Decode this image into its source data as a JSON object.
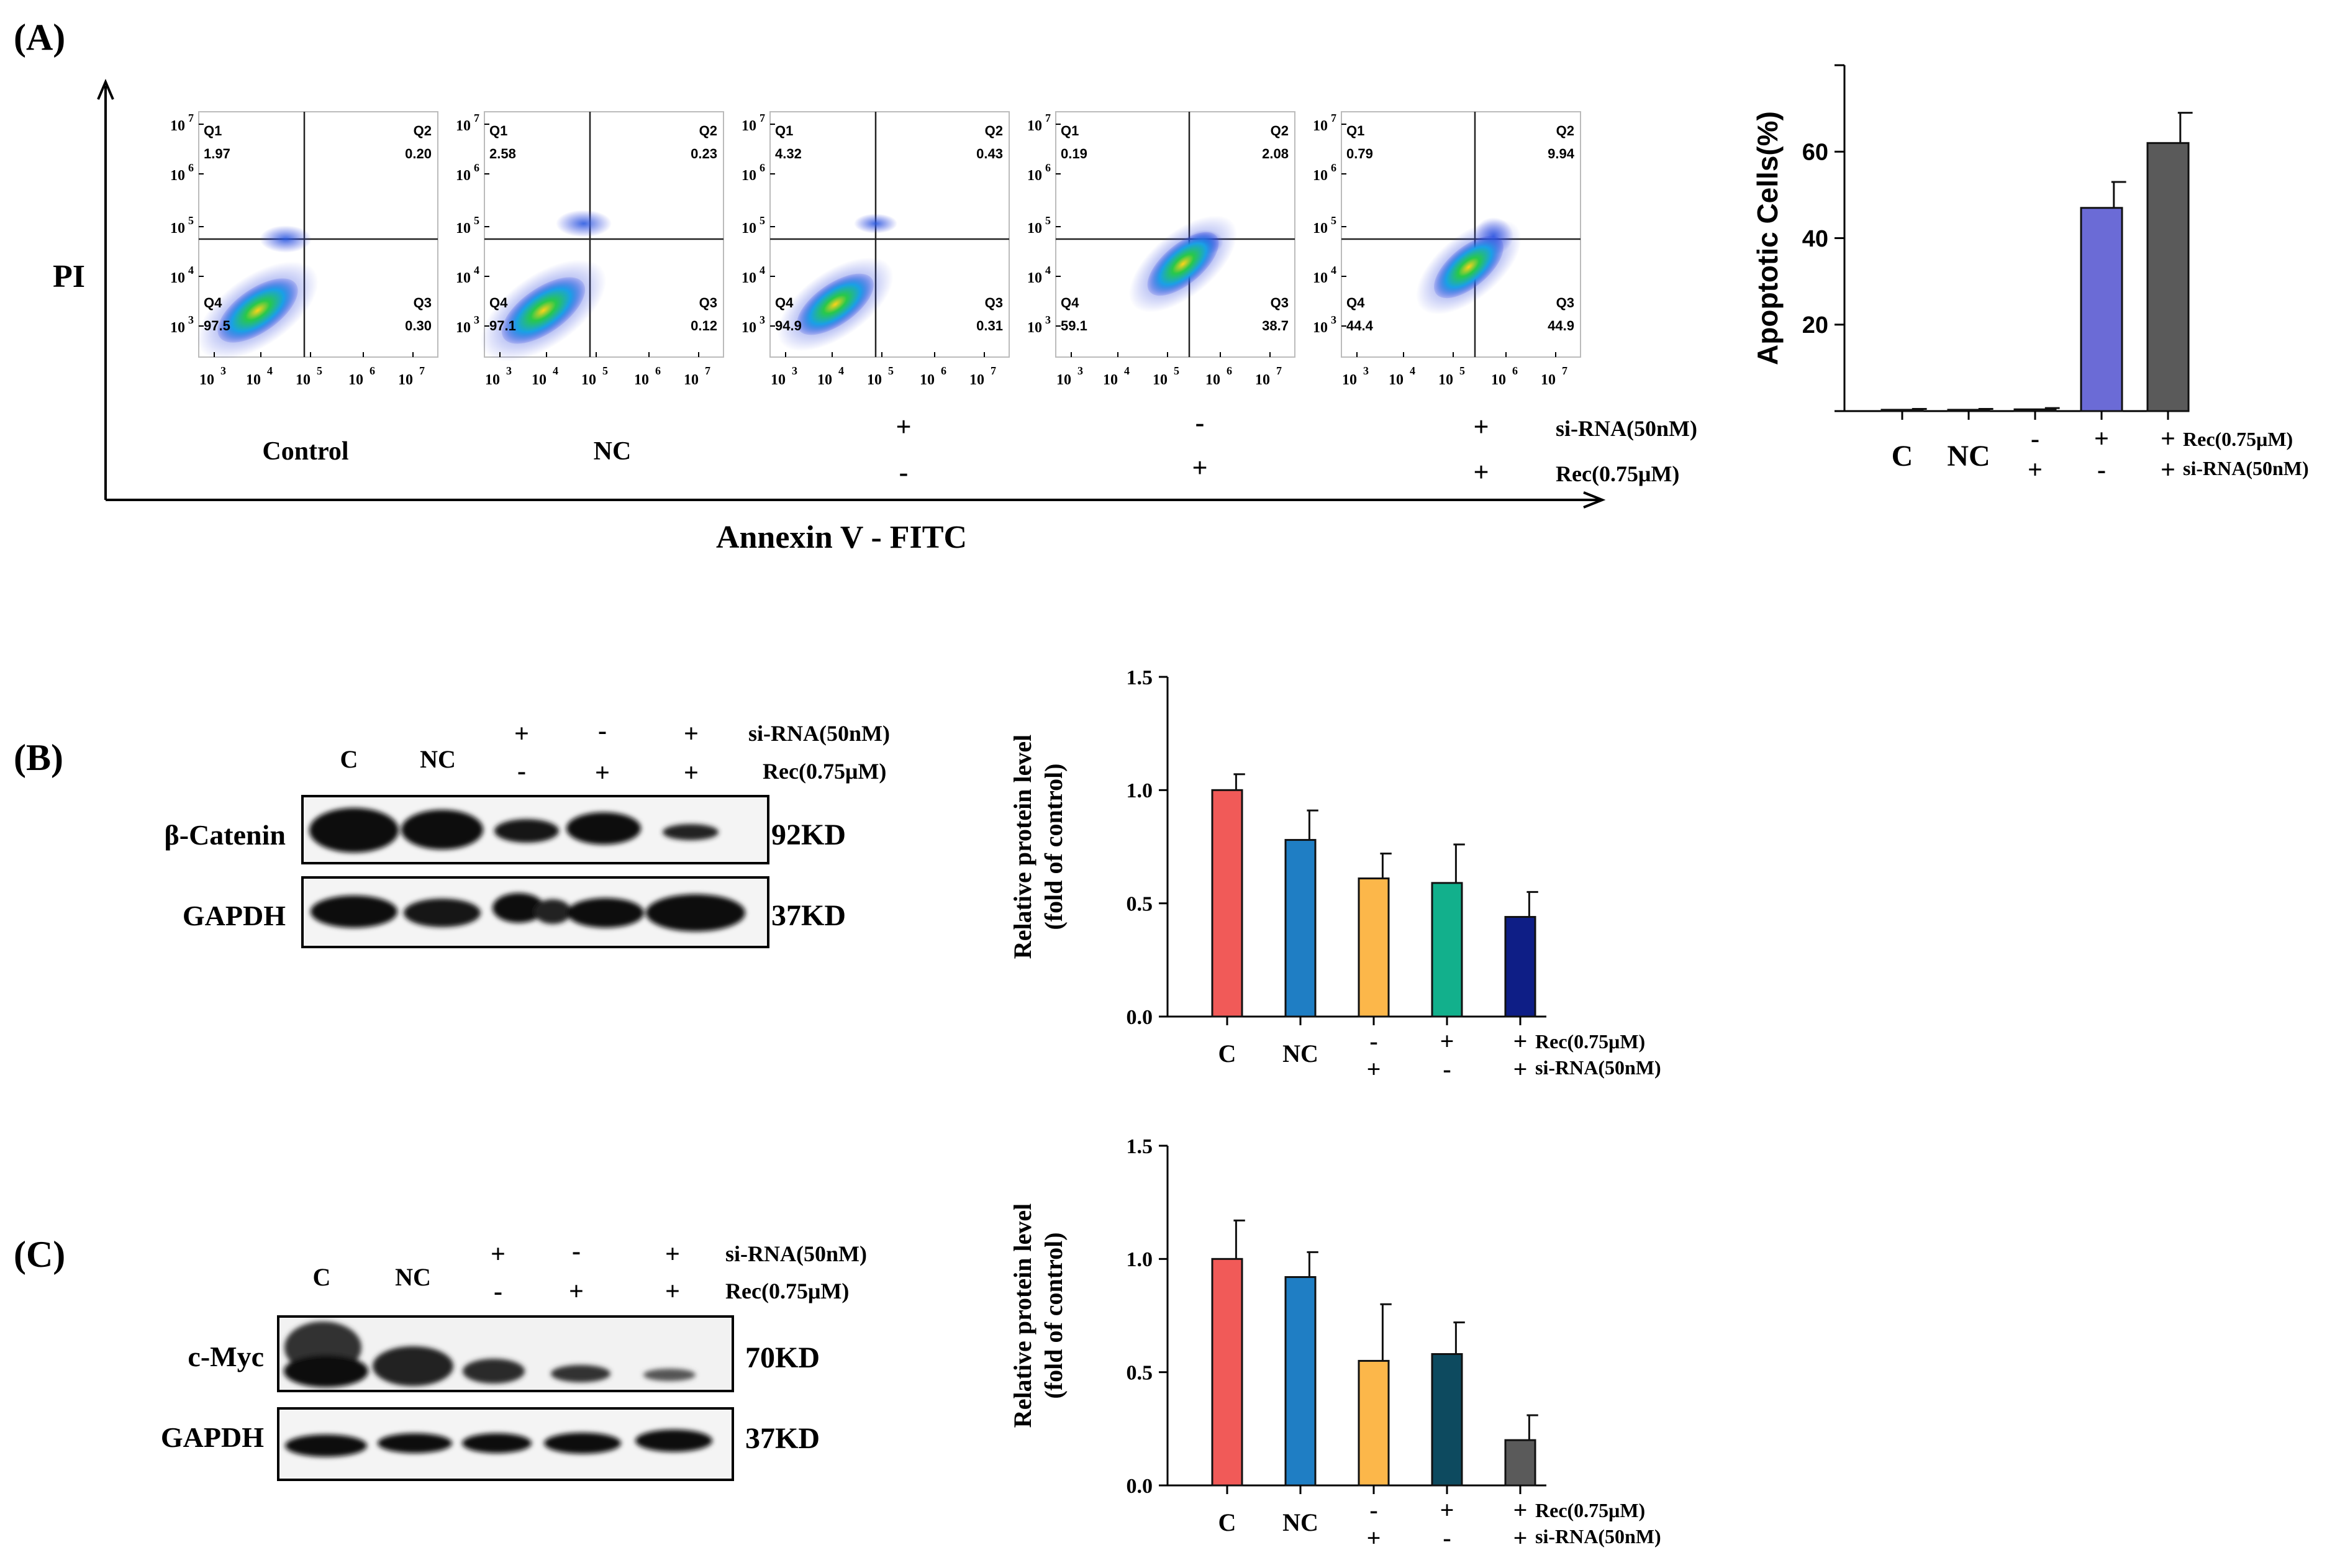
{
  "panel_labels": {
    "a": "(A)",
    "b": "(B)",
    "c": "(C)"
  },
  "flow": {
    "y_axis_label": "PI",
    "x_axis_label": "Annexin V - FITC",
    "quadrant_names": [
      "Q1",
      "Q2",
      "Q3",
      "Q4"
    ],
    "tick_mantissa": "10",
    "y_tick_exponents": [
      "7",
      "6",
      "5",
      "4",
      "3"
    ],
    "x_tick_exponents": [
      "3",
      "4",
      "5",
      "6",
      "7"
    ],
    "plots": [
      {
        "q1": "1.97",
        "q2": "0.20",
        "q3": "0.30",
        "q4": "97.5"
      },
      {
        "q1": "2.58",
        "q2": "0.23",
        "q3": "0.12",
        "q4": "97.1"
      },
      {
        "q1": "4.32",
        "q2": "0.43",
        "q3": "0.31",
        "q4": "94.9"
      },
      {
        "q1": "0.19",
        "q2": "2.08",
        "q3": "38.7",
        "q4": "59.1"
      },
      {
        "q1": "0.79",
        "q2": "9.94",
        "q3": "44.9",
        "q4": "44.4"
      }
    ],
    "group_names": [
      "Control",
      "NC"
    ],
    "row_labels": [
      "si-RNA(50nM)",
      "Rec(0.75μM)"
    ],
    "sirna_signs": [
      "+",
      "-",
      "+"
    ],
    "rec_signs": [
      "-",
      "+",
      "+"
    ]
  },
  "blot_b": {
    "lanes": [
      "C",
      "NC"
    ],
    "row_labels": [
      "si-RNA(50nM)",
      "Rec(0.75μM)"
    ],
    "sirna_signs": [
      "+",
      "-",
      "+"
    ],
    "rec_signs": [
      "-",
      "+",
      "+"
    ],
    "bands": [
      {
        "name": "β-Catenin",
        "size": "92KD"
      },
      {
        "name": "GAPDH",
        "size": "37KD"
      }
    ]
  },
  "blot_c": {
    "lanes": [
      "C",
      "NC"
    ],
    "row_labels": [
      "si-RNA(50nM)",
      "Rec(0.75μM)"
    ],
    "sirna_signs": [
      "+",
      "-",
      "+"
    ],
    "rec_signs": [
      "-",
      "+",
      "+"
    ],
    "bands": [
      {
        "name": "c-Myc",
        "size": "70KD"
      },
      {
        "name": "GAPDH",
        "size": "37KD"
      }
    ]
  },
  "chart_data": [
    {
      "id": "apoptosis",
      "type": "bar",
      "categories": [
        "C",
        "NC",
        "si-RNA",
        "Rec",
        "Rec+si-RNA"
      ],
      "values": [
        0.3,
        0.3,
        0.4,
        47,
        62
      ],
      "errors": [
        0.2,
        0.2,
        0.3,
        6,
        7
      ],
      "colors": [
        "#ffffff",
        "#ffffff",
        "#ffffff",
        "#6b6bd6",
        "#5a5a5a"
      ],
      "ylabel": "Apoptotic Cells(%)",
      "ylim": [
        0,
        80
      ],
      "yticks": [
        20,
        40,
        60
      ],
      "ytick_labels": [
        "20",
        "40",
        "60"
      ],
      "x_labels": [
        "C",
        "NC",
        "",
        "",
        ""
      ],
      "rec_signs": [
        "",
        "",
        "-",
        "+",
        "+"
      ],
      "sirna_signs": [
        "",
        "",
        "+",
        "-",
        "+"
      ],
      "rec_label": "Rec(0.75μM)",
      "sirna_label": "si-RNA(50nM)"
    },
    {
      "id": "bcatenin",
      "type": "bar",
      "categories": [
        "C",
        "NC",
        "si-RNA",
        "Rec",
        "Rec+si-RNA"
      ],
      "values": [
        1.0,
        0.78,
        0.61,
        0.59,
        0.44
      ],
      "errors": [
        0.07,
        0.13,
        0.11,
        0.17,
        0.11
      ],
      "colors": [
        "#f15a58",
        "#1f7ec4",
        "#fcb74a",
        "#12b08c",
        "#0e1e86"
      ],
      "ylabel": "Relative protein level (fold of control)",
      "ylabel_lines": [
        "Relative protein level",
        "(fold of control)"
      ],
      "ylim": [
        0,
        1.5
      ],
      "yticks": [
        0,
        0.5,
        1.0,
        1.5
      ],
      "ytick_labels": [
        "0.0",
        "0.5",
        "1.0",
        "1.5"
      ],
      "x_labels": [
        "C",
        "NC",
        "",
        "",
        ""
      ],
      "rec_signs": [
        "",
        "",
        "-",
        "+",
        "+"
      ],
      "sirna_signs": [
        "",
        "",
        "+",
        "-",
        "+"
      ],
      "rec_label": "Rec(0.75μM)",
      "sirna_label": "si-RNA(50nM)"
    },
    {
      "id": "cmyc",
      "type": "bar",
      "categories": [
        "C",
        "NC",
        "si-RNA",
        "Rec",
        "Rec+si-RNA"
      ],
      "values": [
        1.0,
        0.92,
        0.55,
        0.58,
        0.2
      ],
      "errors": [
        0.17,
        0.11,
        0.25,
        0.14,
        0.11
      ],
      "colors": [
        "#f15a58",
        "#1f7ec4",
        "#fcb74a",
        "#0d4a5f",
        "#5a5a5a"
      ],
      "ylabel": "Relative protein level (fold of control)",
      "ylabel_lines": [
        "Relative protein level",
        "(fold of control)"
      ],
      "ylim": [
        0,
        1.5
      ],
      "yticks": [
        0,
        0.5,
        1.0,
        1.5
      ],
      "ytick_labels": [
        "0.0",
        "0.5",
        "1.0",
        "1.5"
      ],
      "x_labels": [
        "C",
        "NC",
        "",
        "",
        ""
      ],
      "rec_signs": [
        "",
        "",
        "-",
        "+",
        "+"
      ],
      "sirna_signs": [
        "",
        "",
        "+",
        "-",
        "+"
      ],
      "rec_label": "Rec(0.75μM)",
      "sirna_label": "si-RNA(50nM)"
    }
  ]
}
